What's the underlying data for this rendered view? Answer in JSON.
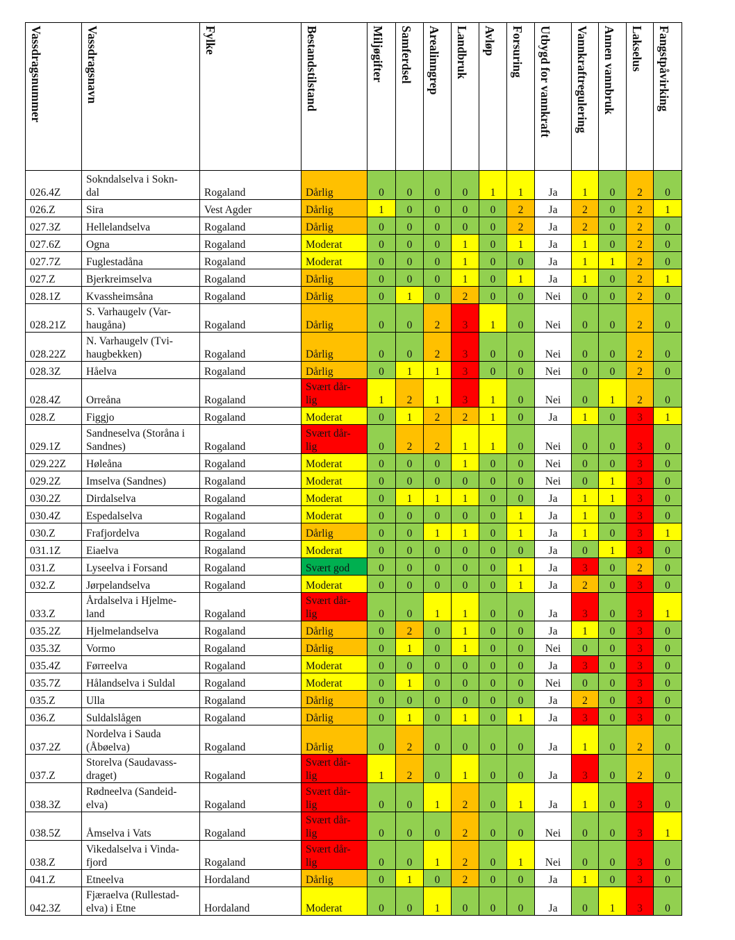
{
  "colors": {
    "0": "#92d050",
    "1": "#ffff00",
    "2": "#ffc000",
    "3": "#ff0000",
    "Dårlig": "#ffc000",
    "Moderat": "#ffff00",
    "Svært dår-\nlig": "#ff0000",
    "Svært god": "#00b050"
  },
  "headers": [
    "Vassdragsnummer",
    "Vassdragsnavn",
    "Fylke",
    "Bestandstilstand",
    "Miljøgifter",
    "Samferdsel",
    "Arealinngrep",
    "Landbruk",
    "Avløp",
    "Forsuring",
    "Utbygd for vannkraft",
    "Vannkraftregulering",
    "Annen vannbruk",
    "Lakselus",
    "Fangstpåvirking"
  ],
  "rows": [
    [
      "026.4Z",
      "Sokndalselva i Sokn-\ndal",
      "Rogaland",
      "Dårlig",
      "0",
      "0",
      "0",
      "0",
      "1",
      "1",
      "Ja",
      "1",
      "0",
      "2",
      "0"
    ],
    [
      "026.Z",
      "Sira",
      "Vest Agder",
      "Dårlig",
      "1",
      "0",
      "0",
      "0",
      "0",
      "2",
      "Ja",
      "2",
      "0",
      "2",
      "1"
    ],
    [
      "027.3Z",
      "Hellelandselva",
      "Rogaland",
      "Dårlig",
      "0",
      "0",
      "0",
      "0",
      "0",
      "2",
      "Ja",
      "2",
      "0",
      "2",
      "0"
    ],
    [
      "027.6Z",
      "Ogna",
      "Rogaland",
      "Moderat",
      "0",
      "0",
      "0",
      "1",
      "0",
      "1",
      "Ja",
      "1",
      "0",
      "2",
      "0"
    ],
    [
      "027.7Z",
      "Fuglestadåna",
      "Rogaland",
      "Moderat",
      "0",
      "0",
      "0",
      "1",
      "0",
      "0",
      "Ja",
      "1",
      "1",
      "2",
      "0"
    ],
    [
      "027.Z",
      "Bjerkreimselva",
      "Rogaland",
      "Dårlig",
      "0",
      "0",
      "0",
      "1",
      "0",
      "1",
      "Ja",
      "1",
      "0",
      "2",
      "1"
    ],
    [
      "028.1Z",
      "Kvassheimsåna",
      "Rogaland",
      "Dårlig",
      "0",
      "1",
      "0",
      "2",
      "0",
      "0",
      "Nei",
      "0",
      "0",
      "2",
      "0"
    ],
    [
      "028.21Z",
      "S. Varhaugelv (Var-\nhaugåna)",
      "Rogaland",
      "Dårlig",
      "0",
      "0",
      "2",
      "3",
      "1",
      "0",
      "Nei",
      "0",
      "0",
      "2",
      "0"
    ],
    [
      "028.22Z",
      "N. Varhaugelv (Tvi-\nhaugbekken)",
      "Rogaland",
      "Dårlig",
      "0",
      "0",
      "2",
      "3",
      "0",
      "0",
      "Nei",
      "0",
      "0",
      "2",
      "0"
    ],
    [
      "028.3Z",
      "Håelva",
      "Rogaland",
      "Dårlig",
      "0",
      "1",
      "1",
      "3",
      "0",
      "0",
      "Nei",
      "0",
      "0",
      "2",
      "0"
    ],
    [
      "028.4Z",
      "Orreåna",
      "Rogaland",
      "Svært dår-\nlig",
      "1",
      "2",
      "1",
      "3",
      "1",
      "0",
      "Nei",
      "0",
      "1",
      "2",
      "0"
    ],
    [
      "028.Z",
      "Figgjo",
      "Rogaland",
      "Moderat",
      "0",
      "1",
      "2",
      "2",
      "1",
      "0",
      "Ja",
      "1",
      "0",
      "3",
      "1"
    ],
    [
      "029.1Z",
      "Sandneselva (Storåna i\nSandnes)",
      "Rogaland",
      "Svært dår-\nlig",
      "0",
      "2",
      "2",
      "1",
      "1",
      "0",
      "Nei",
      "0",
      "0",
      "3",
      "0"
    ],
    [
      "029.22Z",
      "Høleåna",
      "Rogaland",
      "Moderat",
      "0",
      "0",
      "0",
      "1",
      "0",
      "0",
      "Nei",
      "0",
      "0",
      "3",
      "0"
    ],
    [
      "029.2Z",
      "Imselva (Sandnes)",
      "Rogaland",
      "Moderat",
      "0",
      "0",
      "0",
      "0",
      "0",
      "0",
      "Nei",
      "0",
      "1",
      "3",
      "0"
    ],
    [
      "030.2Z",
      "Dirdalselva",
      "Rogaland",
      "Moderat",
      "0",
      "1",
      "1",
      "1",
      "0",
      "0",
      "Ja",
      "1",
      "1",
      "3",
      "0"
    ],
    [
      "030.4Z",
      "Espedalselva",
      "Rogaland",
      "Moderat",
      "0",
      "0",
      "0",
      "0",
      "0",
      "1",
      "Ja",
      "1",
      "0",
      "3",
      "0"
    ],
    [
      "030.Z",
      "Frafjordelva",
      "Rogaland",
      "Dårlig",
      "0",
      "0",
      "1",
      "1",
      "0",
      "1",
      "Ja",
      "1",
      "0",
      "3",
      "1"
    ],
    [
      "031.1Z",
      "Eiaelva",
      "Rogaland",
      "Moderat",
      "0",
      "0",
      "0",
      "0",
      "0",
      "0",
      "Ja",
      "0",
      "1",
      "3",
      "0"
    ],
    [
      "031.Z",
      "Lyseelva i Forsand",
      "Rogaland",
      "Svært god",
      "0",
      "0",
      "0",
      "0",
      "0",
      "1",
      "Ja",
      "3",
      "0",
      "2",
      "0"
    ],
    [
      "032.Z",
      "Jørpelandselva",
      "Rogaland",
      "Moderat",
      "0",
      "0",
      "0",
      "0",
      "0",
      "1",
      "Ja",
      "2",
      "0",
      "3",
      "0"
    ],
    [
      "033.Z",
      "Årdalselva i Hjelme-\nland",
      "Rogaland",
      "Svært dår-\nlig",
      "0",
      "0",
      "1",
      "1",
      "0",
      "0",
      "Ja",
      "3",
      "0",
      "3",
      "1"
    ],
    [
      "035.2Z",
      "Hjelmelandselva",
      "Rogaland",
      "Dårlig",
      "0",
      "2",
      "0",
      "1",
      "0",
      "0",
      "Ja",
      "1",
      "0",
      "3",
      "0"
    ],
    [
      "035.3Z",
      "Vormo",
      "Rogaland",
      "Dårlig",
      "0",
      "1",
      "0",
      "1",
      "0",
      "0",
      "Nei",
      "0",
      "0",
      "3",
      "0"
    ],
    [
      "035.4Z",
      "Førreelva",
      "Rogaland",
      "Moderat",
      "0",
      "0",
      "0",
      "0",
      "0",
      "0",
      "Ja",
      "3",
      "0",
      "3",
      "0"
    ],
    [
      "035.7Z",
      "Hålandselva i Suldal",
      "Rogaland",
      "Moderat",
      "0",
      "1",
      "0",
      "0",
      "0",
      "0",
      "Nei",
      "0",
      "0",
      "3",
      "0"
    ],
    [
      "035.Z",
      "Ulla",
      "Rogaland",
      "Dårlig",
      "0",
      "0",
      "0",
      "0",
      "0",
      "0",
      "Ja",
      "2",
      "0",
      "3",
      "0"
    ],
    [
      "036.Z",
      "Suldalslågen",
      "Rogaland",
      "Dårlig",
      "0",
      "1",
      "0",
      "1",
      "0",
      "1",
      "Ja",
      "3",
      "0",
      "3",
      "0"
    ],
    [
      "037.2Z",
      "Nordelva i Sauda\n(Åbøelva)",
      "Rogaland",
      "Dårlig",
      "0",
      "2",
      "0",
      "0",
      "0",
      "0",
      "Ja",
      "1",
      "0",
      "2",
      "0"
    ],
    [
      "037.Z",
      "Storelva (Saudavass-\ndraget)",
      "Rogaland",
      "Svært dår-\nlig",
      "1",
      "2",
      "0",
      "1",
      "0",
      "0",
      "Ja",
      "3",
      "0",
      "2",
      "0"
    ],
    [
      "038.3Z",
      "Rødneelva (Sandeid-\nelva)",
      "Rogaland",
      "Svært dår-\nlig",
      "0",
      "0",
      "1",
      "2",
      "0",
      "1",
      "Ja",
      "1",
      "0",
      "3",
      "0"
    ],
    [
      "038.5Z",
      "Åmselva i Vats",
      "Rogaland",
      "Svært dår-\nlig",
      "0",
      "0",
      "0",
      "2",
      "0",
      "0",
      "Nei",
      "0",
      "0",
      "3",
      "1"
    ],
    [
      "038.Z",
      "Vikedalselva i Vinda-\nfjord",
      "Rogaland",
      "Svært dår-\nlig",
      "0",
      "0",
      "1",
      "2",
      "0",
      "1",
      "Nei",
      "0",
      "0",
      "3",
      "0"
    ],
    [
      "041.Z",
      "Etneelva",
      "Hordaland",
      "Dårlig",
      "0",
      "1",
      "0",
      "2",
      "0",
      "0",
      "Ja",
      "1",
      "0",
      "3",
      "0"
    ],
    [
      "042.3Z",
      "Fjæraelva (Rullestad-\nelva) i Etne",
      "Hordaland",
      "Moderat",
      "0",
      "0",
      "1",
      "0",
      "0",
      "0",
      "Ja",
      "0",
      "1",
      "3",
      "0"
    ]
  ]
}
